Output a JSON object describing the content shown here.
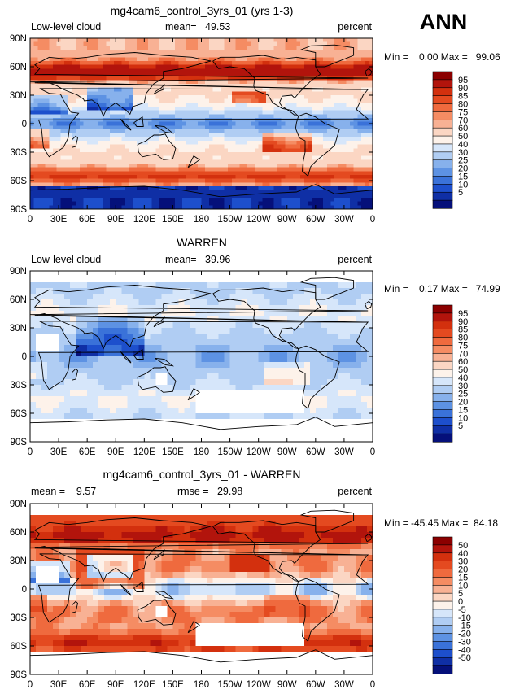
{
  "season": "ANN",
  "panels": [
    {
      "title": "mg4cam6_control_3yrs_01 (yrs 1-3)",
      "left_label": "Low-level cloud",
      "center_label": "mean=   49.53",
      "right_label": "percent",
      "minmax": "Min =    0.00 Max =   99.06",
      "colorbar_labels": [
        "95",
        "90",
        "85",
        "80",
        "75",
        "70",
        "60",
        "50",
        "40",
        "30",
        "25",
        "20",
        "15",
        "10",
        "5"
      ],
      "colorbar_colors": [
        "#8b0000",
        "#b2140c",
        "#d3300e",
        "#e44a20",
        "#ef6a3e",
        "#f58c63",
        "#f8b194",
        "#fbd6c3",
        "#fdf2ea",
        "#d6e6fa",
        "#b0cdf3",
        "#87b1ec",
        "#5d92e3",
        "#3a72d9",
        "#1d4fcc",
        "#0f2fa5",
        "#05107a"
      ],
      "missing_regions": []
    },
    {
      "title": "WARREN",
      "left_label": "Low-level cloud",
      "center_label": "mean=   39.96",
      "right_label": "percent",
      "minmax": "Min =    0.17 Max =   74.99",
      "colorbar_labels": [
        "95",
        "90",
        "85",
        "80",
        "75",
        "70",
        "60",
        "50",
        "40",
        "30",
        "25",
        "20",
        "15",
        "10",
        "5"
      ],
      "colorbar_colors": [
        "#8b0000",
        "#b2140c",
        "#d3300e",
        "#e44a20",
        "#ef6a3e",
        "#f58c63",
        "#f8b194",
        "#fbd6c3",
        "#fdf2ea",
        "#d6e6fa",
        "#b0cdf3",
        "#87b1ec",
        "#5d92e3",
        "#3a72d9",
        "#1d4fcc",
        "#0f2fa5",
        "#05107a"
      ],
      "missing_regions": [
        {
          "lon0": 0,
          "lon1": 360,
          "lat0": 78,
          "lat1": 90
        },
        {
          "lon0": 0,
          "lon1": 360,
          "lat0": -90,
          "lat1": -65
        },
        {
          "lon0": 175,
          "lon1": 290,
          "lat0": -60,
          "lat1": -35
        },
        {
          "lon0": 5,
          "lon1": 30,
          "lat0": 5,
          "lat1": 22
        },
        {
          "lon0": 130,
          "lon1": 145,
          "lat0": -28,
          "lat1": -20
        }
      ]
    },
    {
      "title": "mg4cam6_control_3yrs_01 - WARREN",
      "left_label": "mean =    9.57",
      "center_label": "rmse =   29.98",
      "right_label": "percent",
      "minmax": "Min = -45.45 Max =  84.18",
      "colorbar_labels": [
        "50",
        "40",
        "30",
        "20",
        "15",
        "10",
        "5",
        "0",
        "-5",
        "-10",
        "-15",
        "-20",
        "-30",
        "-40",
        "-50"
      ],
      "colorbar_colors": [
        "#8b0000",
        "#b2140c",
        "#d3300e",
        "#e44a20",
        "#ef6a3e",
        "#f58c63",
        "#f8b194",
        "#fbd6c3",
        "#fdf2ea",
        "#d6e6fa",
        "#b0cdf3",
        "#87b1ec",
        "#5d92e3",
        "#3a72d9",
        "#1d4fcc",
        "#0f2fa5",
        "#05107a"
      ],
      "missing_regions": [
        {
          "lon0": 0,
          "lon1": 360,
          "lat0": 78,
          "lat1": 90
        },
        {
          "lon0": 0,
          "lon1": 360,
          "lat0": -90,
          "lat1": -65
        },
        {
          "lon0": 175,
          "lon1": 290,
          "lat0": -60,
          "lat1": -35
        },
        {
          "lon0": 5,
          "lon1": 30,
          "lat0": 5,
          "lat1": 22
        },
        {
          "lon0": 130,
          "lon1": 145,
          "lat0": -28,
          "lat1": -20
        }
      ]
    }
  ],
  "chart_data": [
    {
      "type": "heatmap",
      "title": "mg4cam6_control_3yrs_01 (yrs 1-3)",
      "variable": "Low-level cloud",
      "units": "percent",
      "mean": 49.53,
      "min": 0.0,
      "max": 99.06,
      "xlim": [
        0,
        360
      ],
      "ylim": [
        -90,
        90
      ],
      "x_ticks": [
        "0",
        "30E",
        "60E",
        "90E",
        "120E",
        "150E",
        "180",
        "150W",
        "120W",
        "90W",
        "60W",
        "30W",
        "0"
      ],
      "y_ticks": [
        "90N",
        "60N",
        "30N",
        "0",
        "30S",
        "60S",
        "90S"
      ],
      "levels": [
        5,
        10,
        15,
        20,
        25,
        30,
        40,
        50,
        60,
        70,
        75,
        80,
        85,
        90,
        95
      ]
    },
    {
      "type": "heatmap",
      "title": "WARREN",
      "variable": "Low-level cloud",
      "units": "percent",
      "mean": 39.96,
      "min": 0.17,
      "max": 74.99,
      "xlim": [
        0,
        360
      ],
      "ylim": [
        -90,
        90
      ],
      "x_ticks": [
        "0",
        "30E",
        "60E",
        "90E",
        "120E",
        "150E",
        "180",
        "150W",
        "120W",
        "90W",
        "60W",
        "30W",
        "0"
      ],
      "y_ticks": [
        "90N",
        "60N",
        "30N",
        "0",
        "30S",
        "60S",
        "90S"
      ],
      "levels": [
        5,
        10,
        15,
        20,
        25,
        30,
        40,
        50,
        60,
        70,
        75,
        80,
        85,
        90,
        95
      ]
    },
    {
      "type": "heatmap",
      "title": "mg4cam6_control_3yrs_01 - WARREN",
      "units": "percent",
      "mean": 9.57,
      "rmse": 29.98,
      "min": -45.45,
      "max": 84.18,
      "xlim": [
        0,
        360
      ],
      "ylim": [
        -90,
        90
      ],
      "x_ticks": [
        "0",
        "30E",
        "60E",
        "90E",
        "120E",
        "150E",
        "180",
        "150W",
        "120W",
        "90W",
        "60W",
        "30W",
        "0"
      ],
      "y_ticks": [
        "90N",
        "60N",
        "30N",
        "0",
        "30S",
        "60S",
        "90S"
      ],
      "levels": [
        -50,
        -40,
        -30,
        -20,
        -15,
        -10,
        -5,
        0,
        5,
        10,
        15,
        20,
        30,
        40,
        50
      ]
    }
  ]
}
